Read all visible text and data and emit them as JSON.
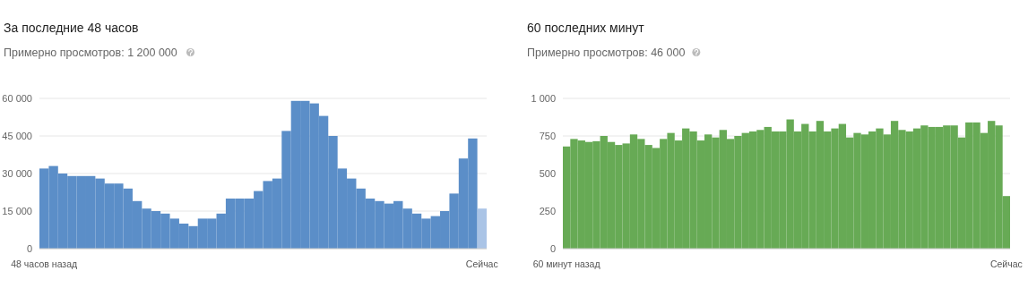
{
  "chart_data": [
    {
      "type": "bar",
      "title": "За последние 48 часов",
      "subtitle": "Примерно просмотров: 1 200 000",
      "categories": [
        "48 часов назад",
        null,
        null,
        null,
        null,
        null,
        null,
        null,
        null,
        null,
        null,
        null,
        null,
        null,
        null,
        null,
        null,
        null,
        null,
        null,
        null,
        null,
        null,
        null,
        null,
        null,
        null,
        null,
        null,
        null,
        null,
        null,
        null,
        null,
        null,
        null,
        null,
        null,
        null,
        null,
        null,
        null,
        null,
        null,
        null,
        null,
        null,
        "Сейчас"
      ],
      "series": [
        {
          "color": "#5b8ec8",
          "colors": [
            null,
            null,
            null,
            null,
            null,
            null,
            null,
            null,
            null,
            null,
            null,
            null,
            null,
            null,
            null,
            null,
            null,
            null,
            null,
            null,
            null,
            null,
            null,
            null,
            null,
            null,
            null,
            null,
            null,
            null,
            null,
            null,
            null,
            null,
            null,
            null,
            null,
            null,
            null,
            null,
            null,
            null,
            null,
            null,
            null,
            null,
            null,
            "#aac4e6"
          ],
          "values": [
            32000,
            33000,
            30000,
            29000,
            29000,
            29000,
            28000,
            26000,
            26000,
            24000,
            19000,
            16000,
            15000,
            14000,
            12000,
            10000,
            9000,
            12000,
            12000,
            14000,
            20000,
            20000,
            20000,
            23000,
            27000,
            28000,
            47000,
            59000,
            59000,
            58000,
            53000,
            45000,
            32000,
            28000,
            24000,
            20000,
            19000,
            18000,
            19000,
            16000,
            14000,
            12000,
            13000,
            15000,
            22000,
            36000,
            44000,
            16000
          ]
        }
      ],
      "ylim": [
        0,
        60000
      ],
      "yticks": [
        {
          "value": 0,
          "label": "0"
        },
        {
          "value": 15000,
          "label": "15 000"
        },
        {
          "value": 30000,
          "label": "30 000"
        },
        {
          "value": 45000,
          "label": "45 000"
        },
        {
          "value": 60000,
          "label": "60 000"
        }
      ],
      "grid": "y"
    },
    {
      "type": "bar",
      "title": "60 последних минут",
      "subtitle": "Примерно просмотров: 46 000",
      "categories": [
        "60 минут назад",
        null,
        null,
        null,
        null,
        null,
        null,
        null,
        null,
        null,
        null,
        null,
        null,
        null,
        null,
        null,
        null,
        null,
        null,
        null,
        null,
        null,
        null,
        null,
        null,
        null,
        null,
        null,
        null,
        null,
        null,
        null,
        null,
        null,
        null,
        null,
        null,
        null,
        null,
        null,
        null,
        null,
        null,
        null,
        null,
        null,
        null,
        null,
        null,
        null,
        null,
        null,
        null,
        null,
        null,
        null,
        null,
        null,
        null,
        "Сейчас"
      ],
      "series": [
        {
          "color": "#67aa55",
          "values": [
            680,
            730,
            720,
            710,
            715,
            750,
            710,
            690,
            700,
            760,
            730,
            690,
            670,
            730,
            770,
            720,
            800,
            780,
            720,
            760,
            740,
            790,
            730,
            750,
            770,
            780,
            790,
            810,
            780,
            780,
            860,
            780,
            830,
            780,
            850,
            780,
            800,
            830,
            740,
            770,
            760,
            780,
            800,
            760,
            850,
            790,
            780,
            800,
            820,
            810,
            810,
            820,
            820,
            740,
            840,
            840,
            770,
            850,
            820,
            350
          ]
        }
      ],
      "ylim": [
        0,
        1000
      ],
      "yticks": [
        {
          "value": 0,
          "label": "0"
        },
        {
          "value": 250,
          "label": "250"
        },
        {
          "value": 500,
          "label": "500"
        },
        {
          "value": 750,
          "label": "750"
        },
        {
          "value": 1000,
          "label": "1 000"
        }
      ],
      "grid": "y"
    }
  ]
}
